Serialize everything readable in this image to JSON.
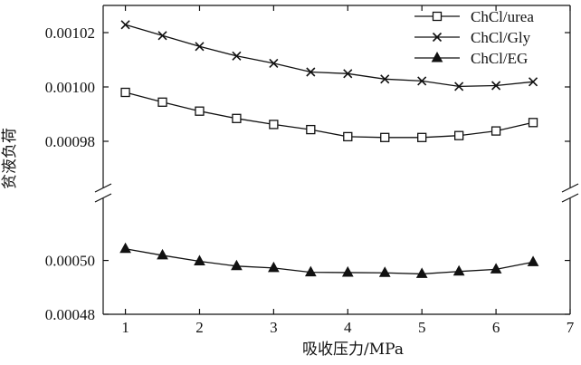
{
  "chart_data": {
    "type": "line",
    "xlabel": "吸收压力/MPa",
    "ylabel": "贫液负荷",
    "x_ticks": [
      "1",
      "2",
      "3",
      "4",
      "5",
      "6",
      "7"
    ],
    "xlim": [
      0.7,
      7
    ],
    "broken_y_axis": true,
    "y_segments": [
      {
        "name": "upper",
        "ylim": [
          0.00097,
          0.00103
        ],
        "ticks": [
          "0.00098",
          "0.00100",
          "0.00102"
        ]
      },
      {
        "name": "lower",
        "ylim": [
          0.00048,
          0.000515
        ],
        "ticks": [
          "0.00048",
          "0.00050"
        ]
      }
    ],
    "legend_position": "top-right",
    "x": [
      1,
      1.5,
      2,
      2.5,
      3,
      3.5,
      4,
      4.5,
      5,
      5.5,
      6,
      6.5
    ],
    "series": [
      {
        "name": "ChCl/urea",
        "marker": "open-square",
        "values": [
          0.000998,
          0.0009944,
          0.0009911,
          0.0009884,
          0.0009862,
          0.0009843,
          0.0009817,
          0.0009814,
          0.0009814,
          0.0009821,
          0.0009838,
          0.0009869
        ]
      },
      {
        "name": "ChCl/Gly",
        "marker": "x",
        "values": [
          0.0010229,
          0.0010189,
          0.0010149,
          0.0010114,
          0.0010087,
          0.0010055,
          0.0010049,
          0.0010029,
          0.0010022,
          0.0010002,
          0.0010005,
          0.0010019
        ]
      },
      {
        "name": "ChCl/EG",
        "marker": "filled-triangle",
        "values": [
          0.0005043,
          0.0005019,
          0.0004997,
          0.0004979,
          0.0004972,
          0.0004956,
          0.0004955,
          0.0004954,
          0.000495,
          0.0004959,
          0.0004967,
          0.0004994
        ]
      }
    ]
  }
}
